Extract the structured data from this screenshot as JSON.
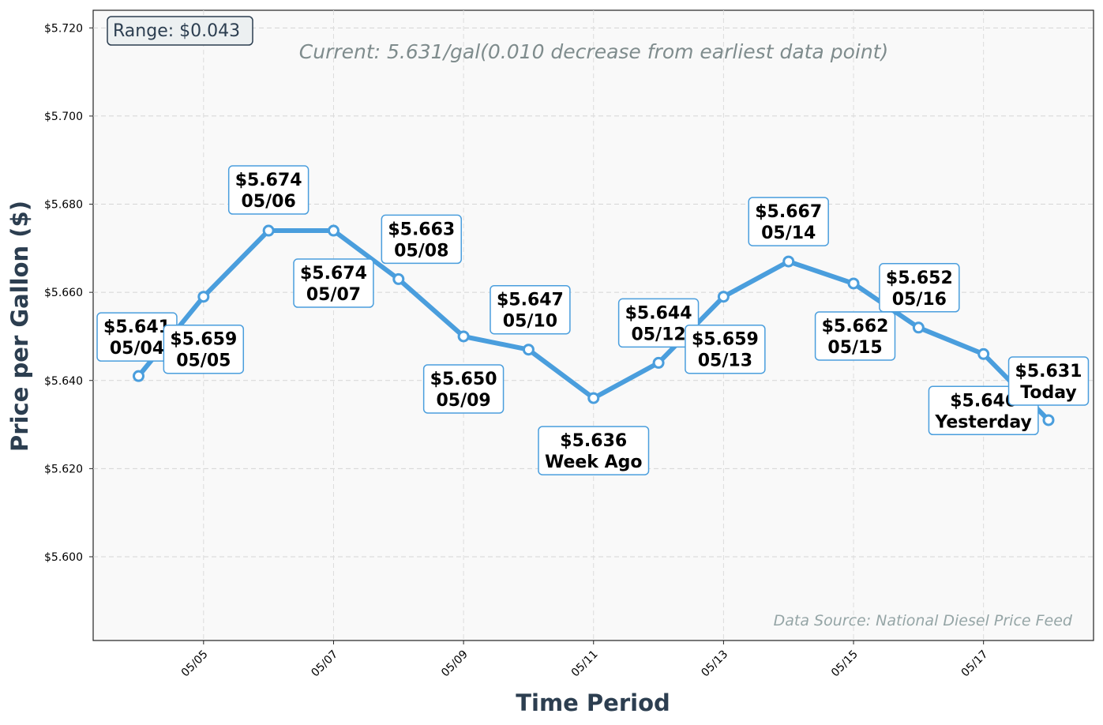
{
  "chart_data": {
    "type": "line",
    "subtitle": "Current: 5.631/gal(0.010 decrease from earliest data point)",
    "xlabel": "Time Period",
    "ylabel": "Price per Gallon ($)",
    "range_label": "Range: $0.043",
    "source_note": "Data Source: National Diesel Price Feed",
    "ylim": [
      5.581,
      5.724
    ],
    "grid": true,
    "y_ticks": [
      "$5.600",
      "$5.620",
      "$5.640",
      "$5.660",
      "$5.680",
      "$5.700",
      "$5.720"
    ],
    "x_ticks": [
      "05/05",
      "05/07",
      "05/09",
      "05/11",
      "05/13",
      "05/15",
      "05/17"
    ],
    "x": [
      "05/04",
      "05/05",
      "05/06",
      "05/07",
      "05/08",
      "05/09",
      "05/10",
      "05/11",
      "05/12",
      "05/13",
      "05/14",
      "05/15",
      "05/16",
      "05/17",
      "05/18"
    ],
    "series": [
      {
        "values": [
          5.641,
          5.659,
          5.674,
          5.674,
          5.663,
          5.65,
          5.647,
          5.636,
          5.644,
          5.659,
          5.667,
          5.662,
          5.652,
          5.646,
          5.631
        ],
        "color": "#4a9edd"
      }
    ],
    "annotations": [
      {
        "price": "$5.641",
        "label": "05/04"
      },
      {
        "price": "$5.659",
        "label": "05/05"
      },
      {
        "price": "$5.674",
        "label": "05/06"
      },
      {
        "price": "$5.674",
        "label": "05/07"
      },
      {
        "price": "$5.663",
        "label": "05/08"
      },
      {
        "price": "$5.650",
        "label": "05/09"
      },
      {
        "price": "$5.647",
        "label": "05/10"
      },
      {
        "price": "$5.636",
        "label": "Week Ago"
      },
      {
        "price": "$5.644",
        "label": "05/12"
      },
      {
        "price": "$5.659",
        "label": "05/13"
      },
      {
        "price": "$5.667",
        "label": "05/14"
      },
      {
        "price": "$5.662",
        "label": "05/15"
      },
      {
        "price": "$5.652",
        "label": "05/16"
      },
      {
        "price": "$5.646",
        "label": "Yesterday"
      },
      {
        "price": "$5.631",
        "label": "Today"
      }
    ]
  }
}
